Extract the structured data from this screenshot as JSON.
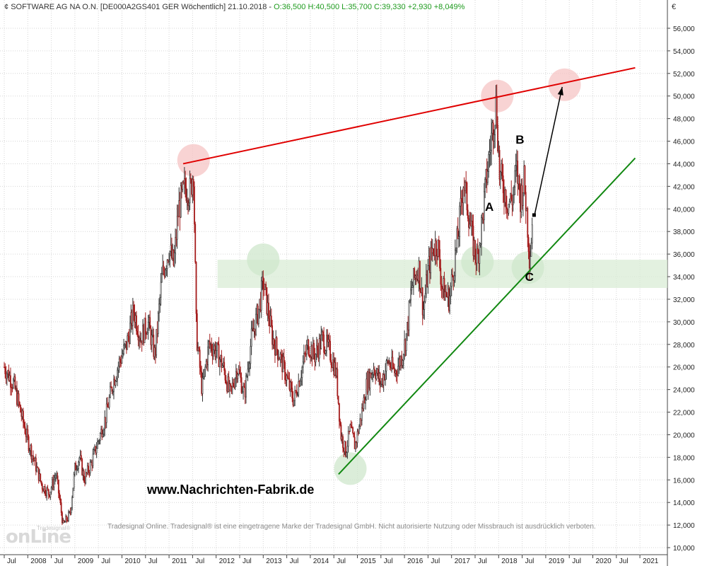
{
  "header": {
    "instrument": "SOFTWARE AG  NA O.N. [DE000A2GS401 GER  Wöchentlich] 21.10.2018 -",
    "quote": "O:36,500 H:40,500 L:35,700 C:39,330 +2,930 +8,049%"
  },
  "currency_label": "€",
  "website": "www.Nachrichten-Fabrik.de",
  "notice": "Tradesignal Online. Tradesignal® ist eine eingetragene Marke der Tradesignal GmbH. Nicht autorisierte Nutzung oder Missbrauch ist ausdrücklich verboten.",
  "logo": {
    "brand": "onLine",
    "small": "Tradesignal®"
  },
  "annotations": {
    "A": "A",
    "B": "B",
    "C": "C"
  },
  "colors": {
    "resistance": "#e00000",
    "support": "#118811",
    "zone": "#d9ecd6",
    "bull": "#333333",
    "bear": "#a51d1d",
    "arrow": "#000000"
  },
  "chart_data": {
    "type": "candlestick",
    "title": "",
    "ylim": [
      9000,
      57000
    ],
    "y_ticks": [
      "10,000",
      "12,000",
      "14,000",
      "16,000",
      "18,000",
      "20,000",
      "22,000",
      "24,000",
      "26,000",
      "28,000",
      "30,000",
      "32,000",
      "34,000",
      "36,000",
      "38,000",
      "40,000",
      "42,000",
      "44,000",
      "46,000",
      "48,000",
      "50,000",
      "52,000",
      "54,000",
      "56,000"
    ],
    "x_ticks": [
      "Jul",
      "2008",
      "Jul",
      "2009",
      "Jul",
      "2010",
      "Jul",
      "2011",
      "Jul",
      "2012",
      "Jul",
      "2013",
      "Jul",
      "2014",
      "Jul",
      "2015",
      "Jul",
      "2016",
      "Jul",
      "2017",
      "Jul",
      "2018",
      "Jul",
      "2019",
      "Jul",
      "2020",
      "Jul",
      "2021"
    ],
    "x_range": [
      2007.5,
      2021.2
    ],
    "price_path": [
      [
        2007.5,
        26.0
      ],
      [
        2007.7,
        24.5
      ],
      [
        2007.85,
        22.0
      ],
      [
        2008.0,
        19.5
      ],
      [
        2008.15,
        17.5
      ],
      [
        2008.3,
        15.5
      ],
      [
        2008.45,
        14.8
      ],
      [
        2008.6,
        16.5
      ],
      [
        2008.75,
        12.0
      ],
      [
        2008.9,
        13.0
      ],
      [
        2009.0,
        17.0
      ],
      [
        2009.1,
        18.0
      ],
      [
        2009.2,
        16.0
      ],
      [
        2009.35,
        17.5
      ],
      [
        2009.5,
        19.5
      ],
      [
        2009.65,
        21.5
      ],
      [
        2009.8,
        24.5
      ],
      [
        2009.95,
        26.5
      ],
      [
        2010.1,
        28.0
      ],
      [
        2010.25,
        31.0
      ],
      [
        2010.4,
        28.5
      ],
      [
        2010.55,
        30.0
      ],
      [
        2010.7,
        27.0
      ],
      [
        2010.85,
        34.0
      ],
      [
        2011.0,
        36.5
      ],
      [
        2011.1,
        35.0
      ],
      [
        2011.2,
        40.0
      ],
      [
        2011.35,
        42.0
      ],
      [
        2011.45,
        41.5
      ],
      [
        2011.52,
        43.5
      ],
      [
        2011.58,
        29.0
      ],
      [
        2011.7,
        24.0
      ],
      [
        2011.85,
        28.0
      ],
      [
        2012.0,
        27.5
      ],
      [
        2012.15,
        26.0
      ],
      [
        2012.3,
        23.5
      ],
      [
        2012.45,
        26.0
      ],
      [
        2012.6,
        23.5
      ],
      [
        2012.75,
        28.5
      ],
      [
        2012.9,
        31.0
      ],
      [
        2013.0,
        33.5
      ],
      [
        2013.1,
        31.0
      ],
      [
        2013.2,
        28.5
      ],
      [
        2013.35,
        27.0
      ],
      [
        2013.5,
        25.0
      ],
      [
        2013.65,
        23.0
      ],
      [
        2013.8,
        25.5
      ],
      [
        2013.95,
        28.0
      ],
      [
        2014.1,
        27.0
      ],
      [
        2014.25,
        28.5
      ],
      [
        2014.4,
        27.5
      ],
      [
        2014.55,
        25.5
      ],
      [
        2014.65,
        20.0
      ],
      [
        2014.75,
        18.5
      ],
      [
        2014.85,
        20.5
      ],
      [
        2014.95,
        19.0
      ],
      [
        2015.05,
        21.0
      ],
      [
        2015.2,
        24.5
      ],
      [
        2015.35,
        26.0
      ],
      [
        2015.5,
        24.5
      ],
      [
        2015.65,
        26.5
      ],
      [
        2015.8,
        25.5
      ],
      [
        2015.95,
        27.0
      ],
      [
        2016.05,
        29.0
      ],
      [
        2016.15,
        33.0
      ],
      [
        2016.3,
        35.0
      ],
      [
        2016.4,
        31.0
      ],
      [
        2016.5,
        34.5
      ],
      [
        2016.6,
        36.5
      ],
      [
        2016.7,
        37.0
      ],
      [
        2016.8,
        33.0
      ],
      [
        2016.95,
        32.0
      ],
      [
        2017.05,
        35.0
      ],
      [
        2017.15,
        38.0
      ],
      [
        2017.25,
        42.5
      ],
      [
        2017.35,
        40.0
      ],
      [
        2017.45,
        37.0
      ],
      [
        2017.55,
        35.5
      ],
      [
        2017.65,
        39.0
      ],
      [
        2017.75,
        43.0
      ],
      [
        2017.85,
        46.5
      ],
      [
        2017.95,
        49.5
      ],
      [
        2018.02,
        43.0
      ],
      [
        2018.1,
        42.0
      ],
      [
        2018.2,
        40.5
      ],
      [
        2018.3,
        41.0
      ],
      [
        2018.38,
        43.5
      ],
      [
        2018.46,
        41.0
      ],
      [
        2018.54,
        42.5
      ],
      [
        2018.6,
        39.5
      ],
      [
        2018.66,
        35.5
      ],
      [
        2018.72,
        39.3
      ]
    ],
    "resistance_line": {
      "from": [
        2011.3,
        44.0
      ],
      "to": [
        2021.2,
        52.5
      ]
    },
    "support_line": {
      "from": [
        2014.6,
        16.5
      ],
      "to": [
        2020.9,
        44.5
      ]
    },
    "support_zone": {
      "from_x": 2012.0,
      "to_x": 2021.2,
      "y_low": 33.0,
      "y_high": 35.5
    },
    "projection_arrow": {
      "from": [
        2018.7,
        39.3
      ],
      "to": [
        2019.35,
        50.8
      ]
    },
    "highlight_circles": [
      {
        "x": 2011.52,
        "y": 44.3,
        "color": "red"
      },
      {
        "x": 2017.97,
        "y": 50.0,
        "color": "red"
      },
      {
        "x": 2019.4,
        "y": 51.0,
        "color": "red"
      },
      {
        "x": 2013.0,
        "y": 35.5,
        "color": "green"
      },
      {
        "x": 2017.55,
        "y": 35.3,
        "color": "green"
      },
      {
        "x": 2018.62,
        "y": 34.8,
        "color": "green"
      },
      {
        "x": 2014.85,
        "y": 17.0,
        "color": "green"
      }
    ],
    "labels": [
      {
        "text": "A",
        "x": 2017.8,
        "y": 40.0
      },
      {
        "text": "B",
        "x": 2018.45,
        "y": 46.0
      },
      {
        "text": "C",
        "x": 2018.65,
        "y": 33.8
      }
    ]
  }
}
